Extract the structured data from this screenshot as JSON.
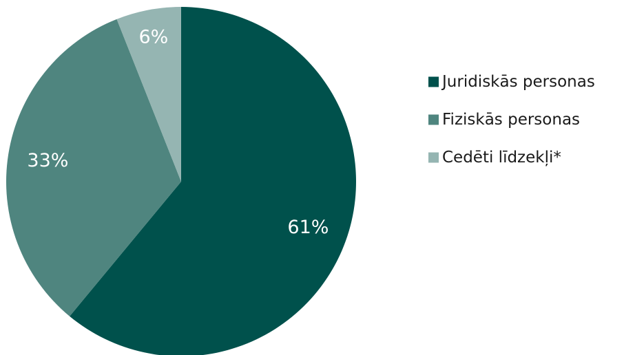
{
  "chart_data": {
    "type": "pie",
    "start_angle_deg": 0,
    "direction": "clockwise",
    "slices": [
      {
        "label": "Juridiskās personas",
        "value": 61,
        "value_label": "61%",
        "color": "#00514c"
      },
      {
        "label": "Fiziskās personas",
        "value": 33,
        "value_label": "33%",
        "color": "#4f857f"
      },
      {
        "label": "Cedēti līdzekļi*",
        "value": 6,
        "value_label": "6%",
        "color": "#95b5b2"
      }
    ],
    "legend_position": "right"
  }
}
